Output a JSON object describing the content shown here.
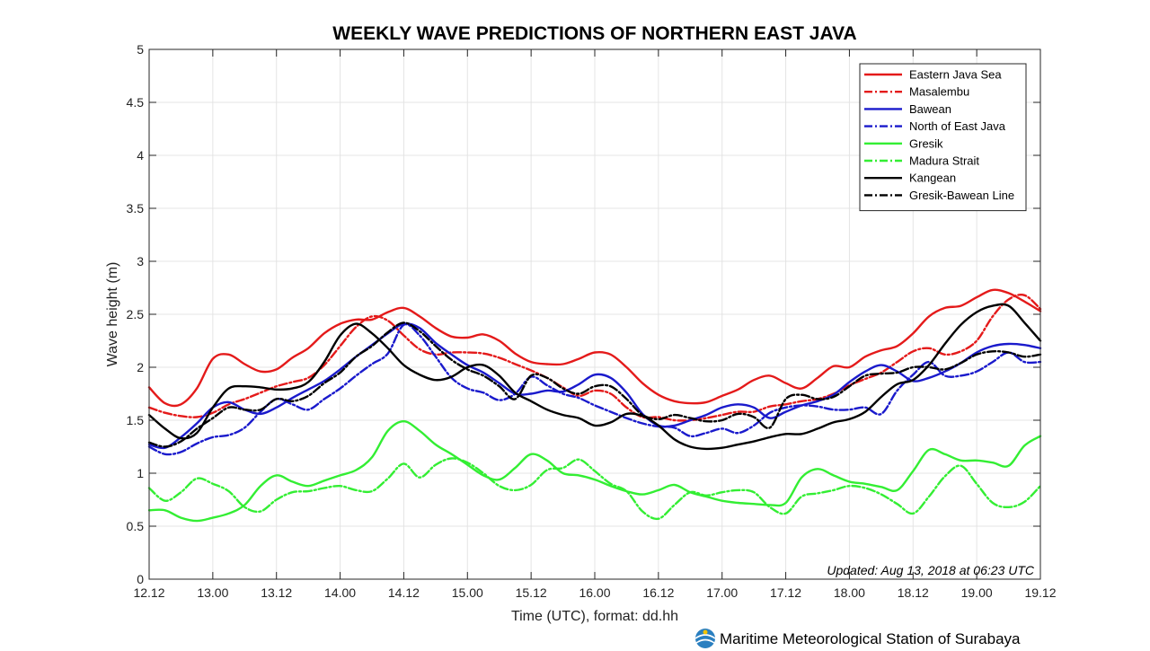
{
  "chart_data": {
    "type": "line",
    "title": "WEEKLY WAVE PREDICTIONS OF NORTHERN EAST JAVA",
    "xlabel": "Time (UTC), format: dd.hh",
    "ylabel": "Wave height (m)",
    "ylim": [
      0,
      5
    ],
    "yticks": [
      "0",
      "0.5",
      "1",
      "1.5",
      "2",
      "2.5",
      "3",
      "3.5",
      "4",
      "4.5",
      "5"
    ],
    "xlim_hours": [
      0,
      168
    ],
    "xticks": [
      "12.12",
      "13.00",
      "13.12",
      "14.00",
      "14.12",
      "15.00",
      "15.12",
      "16.00",
      "16.12",
      "17.00",
      "17.12",
      "18.00",
      "18.12",
      "19.00",
      "19.12"
    ],
    "grid": true,
    "legend_position": "top-right",
    "x_hours": [
      0,
      3,
      6,
      9,
      12,
      15,
      18,
      21,
      24,
      27,
      30,
      33,
      36,
      39,
      42,
      45,
      48,
      51,
      54,
      57,
      60,
      63,
      66,
      69,
      72,
      75,
      78,
      81,
      84,
      87,
      90,
      93,
      96,
      99,
      102,
      105,
      108,
      111,
      114,
      117,
      120,
      123,
      126,
      129,
      132,
      135,
      138,
      141,
      144,
      147,
      150,
      153,
      156,
      159,
      162,
      165,
      168
    ],
    "series": [
      {
        "name": "Eastern Java Sea",
        "color": "#e41a1a",
        "dash": "solid",
        "values": [
          1.81,
          1.66,
          1.65,
          1.8,
          2.08,
          2.12,
          2.03,
          1.96,
          1.98,
          2.09,
          2.18,
          2.32,
          2.41,
          2.45,
          2.45,
          2.52,
          2.56,
          2.48,
          2.37,
          2.29,
          2.28,
          2.31,
          2.25,
          2.13,
          2.05,
          2.03,
          2.03,
          2.08,
          2.14,
          2.12,
          2.0,
          1.85,
          1.74,
          1.68,
          1.66,
          1.67,
          1.73,
          1.79,
          1.88,
          1.92,
          1.85,
          1.8,
          1.9,
          2.01,
          2.0,
          2.1,
          2.16,
          2.2,
          2.32,
          2.48,
          2.56,
          2.58,
          2.66,
          2.73,
          2.7,
          2.62,
          2.53
        ]
      },
      {
        "name": "Masalembu",
        "color": "#e41a1a",
        "dash": "dashdot",
        "values": [
          1.62,
          1.57,
          1.54,
          1.53,
          1.57,
          1.65,
          1.7,
          1.76,
          1.82,
          1.86,
          1.9,
          2.02,
          2.2,
          2.38,
          2.48,
          2.44,
          2.3,
          2.17,
          2.12,
          2.14,
          2.14,
          2.13,
          2.09,
          2.03,
          1.97,
          1.9,
          1.81,
          1.73,
          1.78,
          1.75,
          1.62,
          1.53,
          1.53,
          1.5,
          1.5,
          1.52,
          1.55,
          1.58,
          1.58,
          1.63,
          1.65,
          1.68,
          1.7,
          1.75,
          1.83,
          1.89,
          1.95,
          2.05,
          2.15,
          2.18,
          2.12,
          2.15,
          2.25,
          2.48,
          2.64,
          2.68,
          2.55
        ]
      },
      {
        "name": "Bawean",
        "color": "#1a1acc",
        "dash": "solid",
        "values": [
          1.27,
          1.24,
          1.34,
          1.47,
          1.62,
          1.67,
          1.6,
          1.56,
          1.62,
          1.71,
          1.79,
          1.87,
          1.98,
          2.1,
          2.21,
          2.32,
          2.41,
          2.37,
          2.23,
          2.12,
          2.02,
          1.95,
          1.85,
          1.75,
          1.75,
          1.78,
          1.77,
          1.84,
          1.93,
          1.9,
          1.76,
          1.56,
          1.45,
          1.45,
          1.5,
          1.55,
          1.62,
          1.65,
          1.62,
          1.52,
          1.58,
          1.64,
          1.68,
          1.74,
          1.86,
          1.96,
          2.02,
          1.96,
          1.87,
          1.9,
          1.96,
          2.04,
          2.14,
          2.2,
          2.22,
          2.21,
          2.18
        ]
      },
      {
        "name": "North of East Java",
        "color": "#1a1acc",
        "dash": "dashdot",
        "values": [
          1.25,
          1.18,
          1.2,
          1.28,
          1.34,
          1.36,
          1.43,
          1.58,
          1.7,
          1.65,
          1.6,
          1.7,
          1.8,
          1.92,
          2.03,
          2.13,
          2.4,
          2.3,
          2.1,
          1.9,
          1.8,
          1.76,
          1.69,
          1.75,
          1.91,
          1.83,
          1.75,
          1.71,
          1.64,
          1.58,
          1.52,
          1.47,
          1.44,
          1.43,
          1.35,
          1.38,
          1.42,
          1.38,
          1.45,
          1.57,
          1.62,
          1.64,
          1.63,
          1.6,
          1.6,
          1.62,
          1.56,
          1.78,
          1.93,
          2.05,
          1.92,
          1.92,
          1.96,
          2.05,
          2.14,
          2.05,
          2.05
        ]
      },
      {
        "name": "Gresik",
        "color": "#33ee33",
        "dash": "solid",
        "values": [
          0.65,
          0.65,
          0.58,
          0.55,
          0.58,
          0.62,
          0.7,
          0.88,
          0.98,
          0.92,
          0.88,
          0.93,
          0.98,
          1.03,
          1.15,
          1.4,
          1.49,
          1.4,
          1.27,
          1.18,
          1.08,
          0.98,
          0.94,
          1.05,
          1.18,
          1.12,
          1.0,
          0.98,
          0.94,
          0.88,
          0.83,
          0.8,
          0.84,
          0.89,
          0.82,
          0.78,
          0.74,
          0.72,
          0.71,
          0.7,
          0.72,
          0.96,
          1.04,
          0.98,
          0.92,
          0.9,
          0.87,
          0.84,
          1.02,
          1.22,
          1.18,
          1.12,
          1.12,
          1.1,
          1.07,
          1.26,
          1.35
        ]
      },
      {
        "name": "Madura Strait",
        "color": "#33ee33",
        "dash": "dashdot",
        "values": [
          0.86,
          0.74,
          0.82,
          0.95,
          0.9,
          0.83,
          0.68,
          0.64,
          0.75,
          0.82,
          0.83,
          0.86,
          0.88,
          0.84,
          0.83,
          0.95,
          1.09,
          0.96,
          1.08,
          1.14,
          1.1,
          1.0,
          0.88,
          0.84,
          0.89,
          1.03,
          1.05,
          1.13,
          1.02,
          0.9,
          0.83,
          0.64,
          0.57,
          0.7,
          0.82,
          0.79,
          0.82,
          0.84,
          0.82,
          0.68,
          0.62,
          0.78,
          0.81,
          0.84,
          0.88,
          0.86,
          0.8,
          0.71,
          0.62,
          0.78,
          0.97,
          1.07,
          0.9,
          0.72,
          0.68,
          0.73,
          0.88
        ]
      },
      {
        "name": "Kangean",
        "color": "#000000",
        "dash": "solid",
        "values": [
          1.55,
          1.42,
          1.33,
          1.38,
          1.62,
          1.8,
          1.82,
          1.81,
          1.79,
          1.8,
          1.86,
          2.05,
          2.3,
          2.41,
          2.32,
          2.18,
          2.02,
          1.93,
          1.88,
          1.91,
          2.0,
          2.02,
          1.92,
          1.76,
          1.68,
          1.6,
          1.55,
          1.52,
          1.45,
          1.48,
          1.56,
          1.54,
          1.45,
          1.32,
          1.25,
          1.23,
          1.24,
          1.27,
          1.3,
          1.34,
          1.37,
          1.37,
          1.42,
          1.48,
          1.51,
          1.58,
          1.72,
          1.84,
          1.88,
          2.02,
          2.22,
          2.4,
          2.52,
          2.58,
          2.58,
          2.42,
          2.25
        ]
      },
      {
        "name": "Gresik-Bawean Line",
        "color": "#000000",
        "dash": "dashdot",
        "values": [
          1.29,
          1.25,
          1.3,
          1.42,
          1.52,
          1.62,
          1.6,
          1.6,
          1.7,
          1.68,
          1.73,
          1.85,
          1.95,
          2.1,
          2.2,
          2.33,
          2.42,
          2.34,
          2.2,
          2.07,
          1.98,
          1.92,
          1.82,
          1.7,
          1.92,
          1.9,
          1.8,
          1.75,
          1.82,
          1.82,
          1.7,
          1.55,
          1.51,
          1.55,
          1.52,
          1.49,
          1.5,
          1.56,
          1.53,
          1.43,
          1.7,
          1.74,
          1.7,
          1.72,
          1.82,
          1.92,
          1.94,
          1.95,
          2.0,
          2.0,
          1.98,
          2.04,
          2.12,
          2.15,
          2.14,
          2.1,
          2.12
        ]
      }
    ]
  },
  "annotation": "Updated: Aug 13, 2018 at 06:23 UTC",
  "footer": "Maritime Meteorological Station of Surabaya"
}
